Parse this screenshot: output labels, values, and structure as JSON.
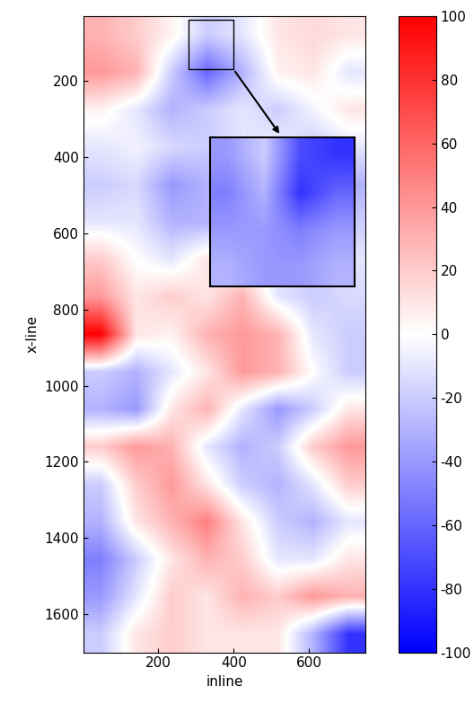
{
  "chart_data": {
    "type": "heatmap",
    "xlabel": "inline",
    "ylabel": "x-line",
    "xlim": [
      1,
      750
    ],
    "ylim": [
      1700,
      30
    ],
    "xticks": [
      200,
      400,
      600
    ],
    "yticks": [
      200,
      400,
      600,
      800,
      1000,
      1200,
      1400,
      1600
    ],
    "cells": [
      [
        30,
        20,
        5,
        -20,
        -10,
        10,
        15,
        10
      ],
      [
        40,
        30,
        -20,
        -60,
        -30,
        5,
        10,
        -10
      ],
      [
        5,
        -10,
        -30,
        -20,
        -10,
        -20,
        -5,
        10
      ],
      [
        -10,
        -5,
        -15,
        -20,
        -10,
        -5,
        -20,
        -10
      ],
      [
        -20,
        -15,
        -40,
        -30,
        -20,
        -30,
        -40,
        -30
      ],
      [
        -10,
        -10,
        -30,
        -30,
        -20,
        -10,
        -30,
        -20
      ],
      [
        20,
        0,
        -10,
        10,
        -5,
        -10,
        -15,
        -10
      ],
      [
        40,
        10,
        20,
        10,
        30,
        -10,
        -20,
        -15
      ],
      [
        100,
        10,
        5,
        30,
        40,
        30,
        -10,
        -20
      ],
      [
        -20,
        -30,
        -10,
        10,
        40,
        30,
        0,
        -20
      ],
      [
        -30,
        -40,
        10,
        30,
        -10,
        -40,
        -20,
        10
      ],
      [
        20,
        40,
        30,
        -10,
        -30,
        -20,
        20,
        40
      ],
      [
        -20,
        20,
        40,
        10,
        -20,
        -30,
        -10,
        20
      ],
      [
        -30,
        10,
        30,
        50,
        10,
        -20,
        -30,
        -10
      ],
      [
        -50,
        -20,
        10,
        30,
        20,
        -10,
        -10,
        10
      ],
      [
        -40,
        -10,
        20,
        10,
        30,
        20,
        40,
        30
      ],
      [
        -20,
        10,
        20,
        10,
        10,
        10,
        -30,
        -80
      ]
    ],
    "colorbar": {
      "range": [
        -100,
        100
      ],
      "ticks": [
        -100,
        -80,
        -60,
        -40,
        -20,
        0,
        20,
        40,
        60,
        80,
        100
      ]
    },
    "zoom_region": {
      "xlim": [
        280,
        400
      ],
      "ylim": [
        170,
        40
      ]
    },
    "zoom_cells": [
      [
        -40,
        -20,
        -70,
        -80
      ],
      [
        -50,
        -30,
        -80,
        -60
      ],
      [
        -40,
        -40,
        -50,
        -40
      ],
      [
        -30,
        -40,
        -40,
        -30
      ]
    ]
  }
}
